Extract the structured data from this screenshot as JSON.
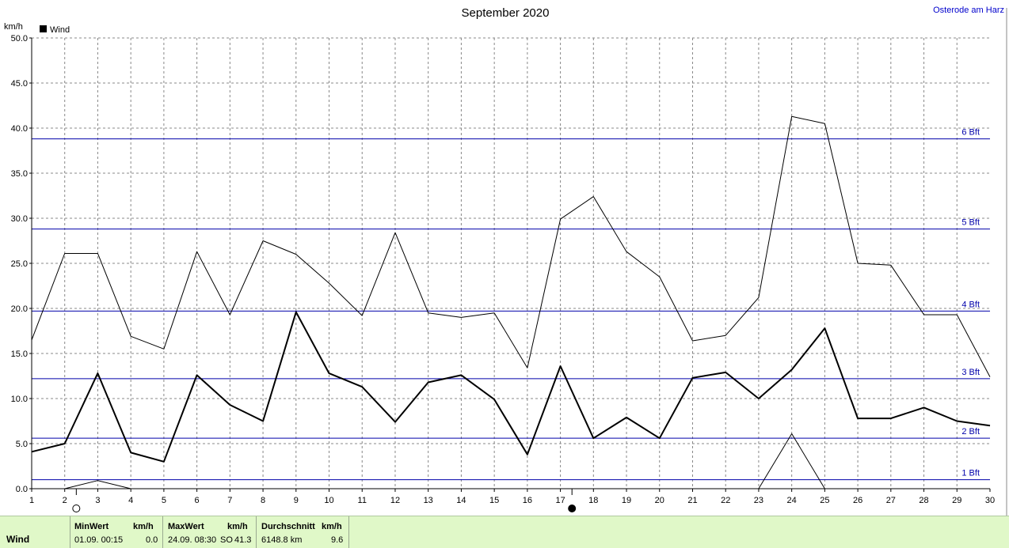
{
  "chart_data": {
    "type": "line",
    "title": "September 2020",
    "station": "Osterode am Harz",
    "ylabel": "km/h",
    "ylim": [
      0,
      50
    ],
    "y_ticks": [
      "0.0",
      "5.0",
      "10.0",
      "15.0",
      "20.0",
      "25.0",
      "30.0",
      "35.0",
      "40.0",
      "45.0",
      "50.0"
    ],
    "xlim": [
      1,
      30
    ],
    "x_ticks": [
      "1",
      "2",
      "3",
      "4",
      "5",
      "6",
      "7",
      "8",
      "9",
      "10",
      "11",
      "12",
      "13",
      "14",
      "15",
      "16",
      "17",
      "18",
      "19",
      "20",
      "21",
      "22",
      "23",
      "24",
      "25",
      "26",
      "27",
      "28",
      "29",
      "30"
    ],
    "legend": [
      {
        "name": "Wind",
        "color": "#000000"
      }
    ],
    "legend_position": "top-left",
    "grid": true,
    "beaufort_lines": [
      {
        "label": "1 Bft",
        "value": 1.0
      },
      {
        "label": "2 Bft",
        "value": 5.6
      },
      {
        "label": "3 Bft",
        "value": 12.2
      },
      {
        "label": "4 Bft",
        "value": 19.7
      },
      {
        "label": "5 Bft",
        "value": 28.8
      },
      {
        "label": "6 Bft",
        "value": 38.8
      }
    ],
    "beaufort_color": "#0000aa",
    "series": [
      {
        "name": "Wind",
        "x": [
          1,
          2,
          3,
          4,
          5,
          6,
          7,
          8,
          9,
          10,
          11,
          12,
          13,
          14,
          15,
          16,
          17,
          18,
          19,
          20,
          21,
          22,
          23,
          24,
          25,
          26,
          27,
          28,
          29,
          30
        ],
        "values": [
          4.1,
          5.0,
          12.8,
          4.0,
          3.0,
          12.6,
          9.3,
          7.5,
          19.6,
          12.8,
          11.3,
          7.4,
          11.8,
          12.6,
          9.9,
          3.8,
          13.6,
          5.6,
          7.9,
          5.6,
          12.3,
          12.9,
          10.0,
          13.2,
          17.8,
          7.8,
          7.8,
          9.0,
          7.5,
          7.0
        ],
        "stroke_width": 2
      },
      {
        "name": "",
        "x": [
          1,
          2,
          3,
          4,
          5,
          6,
          7,
          8,
          9,
          10,
          11,
          12,
          13,
          14,
          15,
          16,
          17,
          18,
          19,
          20,
          21,
          22,
          23,
          24,
          25,
          26,
          27,
          28,
          29,
          30
        ],
        "values": [
          16.5,
          26.1,
          26.1,
          16.9,
          15.5,
          26.3,
          19.3,
          27.5,
          26.0,
          22.8,
          19.2,
          28.4,
          19.5,
          19.0,
          19.5,
          13.4,
          29.9,
          32.4,
          26.3,
          23.5,
          16.4,
          17.0,
          21.2,
          41.3,
          40.5,
          25.0,
          24.8,
          19.3,
          19.3,
          12.4
        ],
        "stroke_width": 1
      },
      {
        "name": "",
        "x": [
          2,
          3,
          4
        ],
        "values": [
          0.0,
          0.9,
          0.0
        ],
        "stroke_width": 1
      },
      {
        "name": "",
        "x": [
          23,
          24,
          25
        ],
        "values": [
          0.0,
          6.1,
          0.0
        ],
        "stroke_width": 1
      },
      {
        "name": "",
        "x": [
          16.5,
          17.35
        ],
        "values": [
          0.0,
          0.0
        ],
        "stroke_width": 1
      }
    ],
    "moon_markers": [
      {
        "x": 2.35,
        "phase": "full"
      },
      {
        "x": 17.35,
        "phase": "new"
      }
    ]
  },
  "footer": {
    "row_label": "Wind",
    "min": {
      "header": "MinWert",
      "unit": "km/h",
      "datetime": "01.09.  00:15",
      "value": "0.0"
    },
    "max": {
      "header": "MaxWert",
      "unit": "km/h",
      "datetime": "24.09.  08:30",
      "direction": "SO",
      "value": "41.3"
    },
    "avg": {
      "header": "Durchschnitt",
      "unit": "km/h",
      "distance": "6148.8 km",
      "value": "9.6"
    }
  }
}
